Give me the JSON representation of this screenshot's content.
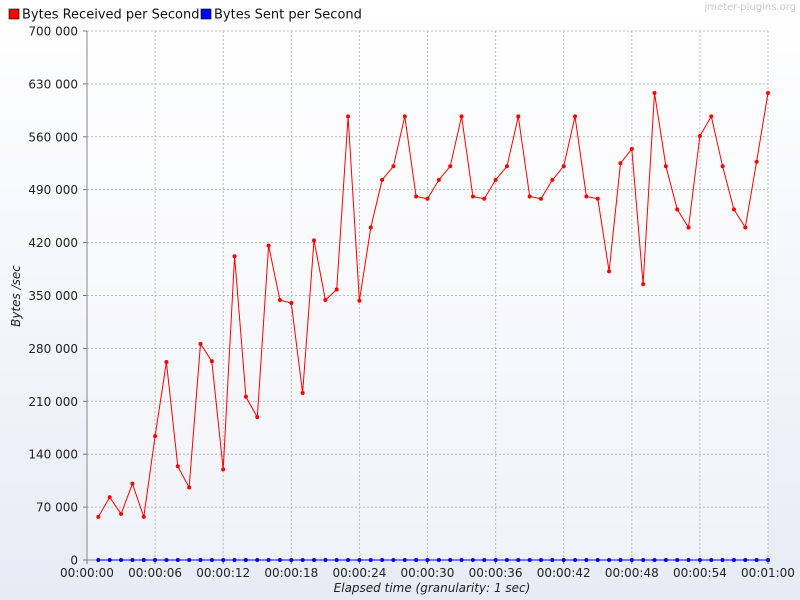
{
  "watermark": "jmeter-plugins.org",
  "chart_data": {
    "type": "line",
    "title": "",
    "xlabel": "Elapsed time (granularity: 1 sec)",
    "ylabel": "Bytes /sec",
    "xlim": [
      0,
      60
    ],
    "ylim": [
      0,
      700000
    ],
    "x_ticks": [
      "00:00:00",
      "00:00:06",
      "00:00:12",
      "00:00:18",
      "00:00:24",
      "00:00:30",
      "00:00:36",
      "00:00:42",
      "00:00:48",
      "00:00:54",
      "00:01:00"
    ],
    "y_ticks": [
      "0",
      "70 000",
      "140 000",
      "210 000",
      "280 000",
      "350 000",
      "420 000",
      "490 000",
      "560 000",
      "630 000",
      "700 000"
    ],
    "grid": true,
    "legend_position": "top-left",
    "x": [
      1,
      2,
      3,
      4,
      5,
      6,
      7,
      8,
      9,
      10,
      11,
      12,
      13,
      14,
      15,
      16,
      17,
      18,
      19,
      20,
      21,
      22,
      23,
      24,
      25,
      26,
      27,
      28,
      29,
      30,
      31,
      32,
      33,
      34,
      35,
      36,
      37,
      38,
      39,
      40,
      41,
      42,
      43,
      44,
      45,
      46,
      47,
      48,
      49,
      50,
      51,
      52,
      53,
      54,
      55,
      56,
      57,
      58,
      59,
      60
    ],
    "series": [
      {
        "name": "Bytes Received per Second",
        "color": "#ff0000",
        "values": [
          57000,
          83000,
          61000,
          101000,
          57000,
          164000,
          262000,
          124000,
          96000,
          286000,
          263000,
          120000,
          402000,
          216000,
          189000,
          416000,
          344000,
          340000,
          221000,
          423000,
          344000,
          358000,
          587000,
          343000,
          440000,
          503000,
          521000,
          587000,
          481000,
          478000,
          503000,
          521000,
          587000,
          481000,
          478000,
          503000,
          521000,
          587000,
          481000,
          478000,
          503000,
          521000,
          587000,
          481000,
          478000,
          382000,
          525000,
          544000,
          365000,
          618000,
          521000,
          464000,
          440000,
          561000,
          587000,
          521000,
          464000,
          440000,
          527000,
          618000
        ]
      },
      {
        "name": "Bytes Sent per Second",
        "color": "#0000ff",
        "values": [
          0,
          0,
          0,
          0,
          0,
          0,
          0,
          0,
          0,
          0,
          0,
          0,
          0,
          0,
          0,
          0,
          0,
          0,
          0,
          0,
          0,
          0,
          0,
          0,
          0,
          0,
          0,
          0,
          0,
          0,
          0,
          0,
          0,
          0,
          0,
          0,
          0,
          0,
          0,
          0,
          0,
          0,
          0,
          0,
          0,
          0,
          0,
          0,
          0,
          0,
          0,
          0,
          0,
          0,
          0,
          0,
          0,
          0,
          0,
          0
        ]
      }
    ]
  }
}
